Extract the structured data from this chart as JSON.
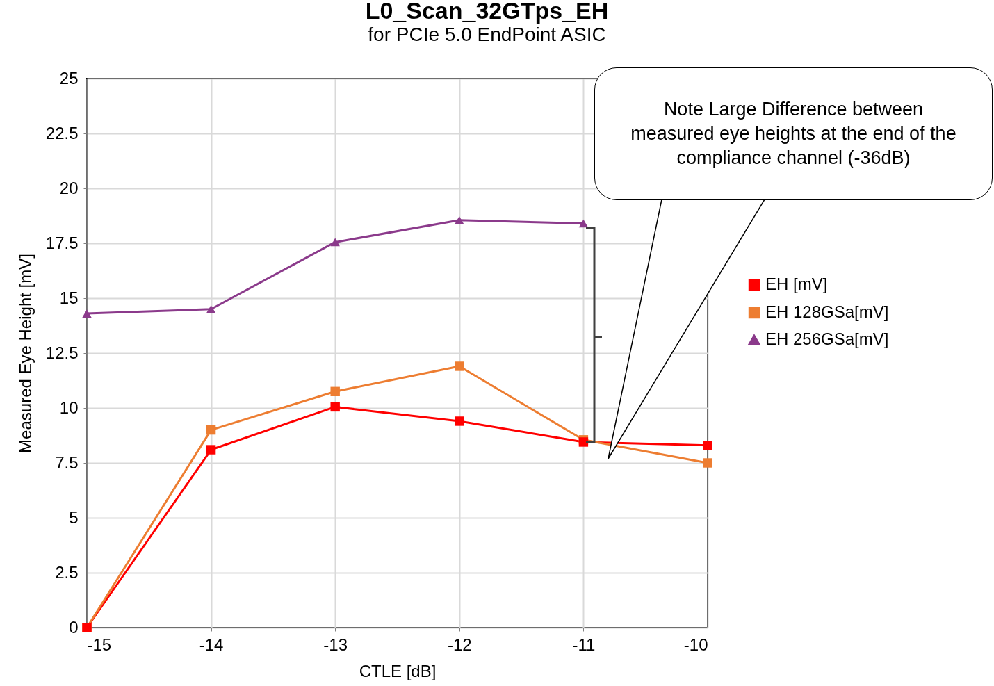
{
  "chart_data": {
    "type": "line",
    "title": "L0_Scan_32GTps_EH",
    "subtitle": "for PCIe 5.0 EndPoint ASIC",
    "xlabel": "CTLE [dB]",
    "ylabel": "Measured Eye Height [mV]",
    "x": [
      -15,
      -14,
      -13,
      -12,
      -11,
      -10
    ],
    "series": [
      {
        "name": "EH [mV]",
        "color": "#ff0000",
        "marker": "square",
        "values": [
          0,
          8.1,
          10.05,
          9.4,
          8.45,
          8.3
        ]
      },
      {
        "name": "EH 128GSa[mV]",
        "color": "#ed7d31",
        "marker": "square",
        "values": [
          0,
          9.0,
          10.75,
          11.9,
          8.55,
          7.5
        ]
      },
      {
        "name": "EH 256GSa[mV]",
        "color": "#8b3a8b",
        "marker": "triangle",
        "values": [
          14.3,
          14.5,
          17.55,
          18.55,
          18.4,
          null
        ]
      }
    ],
    "xlim": [
      -15,
      -10
    ],
    "xticks": [
      -15,
      -14,
      -13,
      -12,
      -11,
      -10
    ],
    "ylim": [
      0,
      25
    ],
    "yticks": [
      0,
      2.5,
      5,
      7.5,
      10,
      12.5,
      15,
      17.5,
      20,
      22.5,
      25
    ],
    "grid": true,
    "legend": "right",
    "annotations": [
      "Note Large Difference between measured eye heights at the end of the compliance channel (-36dB)"
    ]
  }
}
